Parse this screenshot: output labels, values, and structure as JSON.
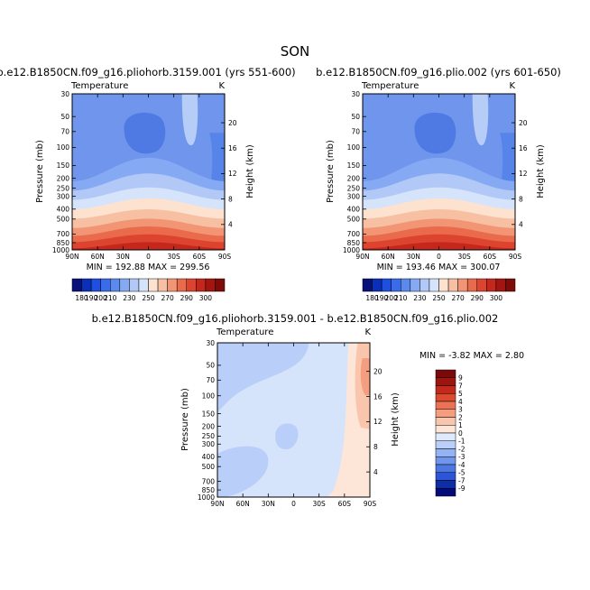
{
  "figure": {
    "title": "SON"
  },
  "panels": [
    {
      "title": "b.e12.B1850CN.f09_g16.pliohorb.3159.001 (yrs 551-600)",
      "corner_left": "Temperature",
      "corner_right": "K",
      "stats": "MIN = 192.88   MAX = 299.56"
    },
    {
      "title": "b.e12.B1850CN.f09_g16.plio.002 (yrs 601-650)",
      "corner_left": "Temperature",
      "corner_right": "K",
      "stats": "MIN = 193.46   MAX = 300.07"
    },
    {
      "title": "b.e12.B1850CN.f09_g16.pliohorb.3159.001 - b.e12.B1850CN.f09_g16.plio.002",
      "corner_left": "Temperature",
      "corner_right": "K",
      "stats": "MIN =   -3.82   MAX =     2.80"
    }
  ],
  "chart_data": [
    {
      "type": "heatmap",
      "title": "b.e12.B1850CN.f09_g16.pliohorb.3159.001 (yrs 551-600)",
      "xlabel": "",
      "ylabel": "Pressure (mb)",
      "y2label": "Height (km)",
      "x_ticks": [
        "90N",
        "60N",
        "30N",
        "0",
        "30S",
        "60S",
        "90S"
      ],
      "y_ticks": [
        "30",
        "50",
        "70",
        "100",
        "150",
        "200",
        "250",
        "300",
        "400",
        "500",
        "700",
        "850",
        "1000"
      ],
      "y2_ticks": [
        "20",
        "16",
        "12",
        "8",
        "4"
      ],
      "colorbar_ticks": [
        180,
        190,
        200,
        210,
        230,
        250,
        270,
        290,
        300
      ],
      "min": 192.88,
      "max": 299.56
    },
    {
      "type": "heatmap",
      "title": "b.e12.B1850CN.f09_g16.plio.002 (yrs 601-650)",
      "xlabel": "",
      "ylabel": "Pressure (mb)",
      "y2label": "Height (km)",
      "x_ticks": [
        "90N",
        "60N",
        "30N",
        "0",
        "30S",
        "60S",
        "90S"
      ],
      "y_ticks": [
        "30",
        "50",
        "70",
        "100",
        "150",
        "200",
        "250",
        "300",
        "400",
        "500",
        "700",
        "850",
        "1000"
      ],
      "y2_ticks": [
        "20",
        "16",
        "12",
        "8",
        "4"
      ],
      "colorbar_ticks": [
        180,
        190,
        200,
        210,
        230,
        250,
        270,
        290,
        300
      ],
      "min": 193.46,
      "max": 300.07
    },
    {
      "type": "heatmap",
      "title": "b.e12.B1850CN.f09_g16.pliohorb.3159.001 - b.e12.B1850CN.f09_g16.plio.002",
      "xlabel": "",
      "ylabel": "Pressure (mb)",
      "y2label": "Height (km)",
      "x_ticks": [
        "90N",
        "60N",
        "30N",
        "0",
        "30S",
        "60S",
        "90S"
      ],
      "y_ticks": [
        "30",
        "50",
        "70",
        "100",
        "150",
        "200",
        "250",
        "300",
        "400",
        "500",
        "700",
        "850",
        "1000"
      ],
      "y2_ticks": [
        "20",
        "16",
        "12",
        "8",
        "4"
      ],
      "colorbar_ticks": [
        9,
        7,
        5,
        4,
        3,
        2,
        1,
        0,
        -1,
        -2,
        -3,
        -4,
        -5,
        -7,
        -9
      ],
      "min": -3.82,
      "max": 2.8
    }
  ],
  "colors": {
    "abs_colorbar": [
      "#08107a",
      "#0a2fb8",
      "#1f4fe0",
      "#3a6be8",
      "#5b8aef",
      "#86a9f4",
      "#b2c9f8",
      "#d6e4fb",
      "#fde2cf",
      "#f8c0a2",
      "#f29574",
      "#ea6a4c",
      "#dd4430",
      "#c4281c",
      "#a31510",
      "#800a08"
    ],
    "diff_colorbar": [
      "#7a0a0a",
      "#a0140f",
      "#c42a1c",
      "#dd4a30",
      "#ec7255",
      "#f49d7f",
      "#f9c6ad",
      "#fde6d8",
      "#dfeafc",
      "#b9cff9",
      "#93b3f3",
      "#6f95ec",
      "#4d78e4",
      "#2c55d8",
      "#0e2ea8",
      "#050c78"
    ],
    "field": {
      "stratosphere": "#6f96ec",
      "tropopause_core": "#4f7ae4",
      "high_lat_strat": "#b6cdf8",
      "polar_upper_right": "#5684e8",
      "upper_trop": "#86a9f4",
      "mid_trop_cool": "#b2c9f8",
      "mid_trop_light": "#d6e4fb",
      "warm_1": "#fde2cf",
      "warm_2": "#f8c0a2",
      "warm_3": "#f29574",
      "warm_4": "#ea6a4c",
      "warm_5": "#dd4430",
      "warm_6": "#c4281c",
      "diff_base": "#d6e4fb",
      "diff_neg": "#b9cff9",
      "diff_pos1": "#fde6d8",
      "diff_pos2": "#f9c6ad",
      "diff_pos3": "#f49d7f"
    }
  }
}
